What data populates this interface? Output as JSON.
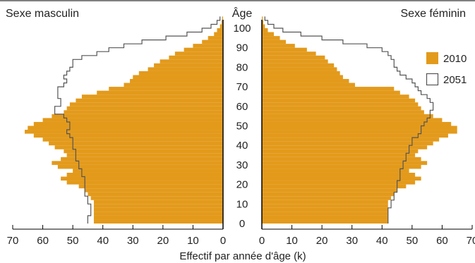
{
  "chart_data": {
    "type": "population-pyramid",
    "left_title": "Sexe masculin",
    "right_title": "Sexe féminin",
    "age_label": "Âge",
    "xlabel": "Effectif par année d'âge (k)",
    "x_ticks_left": [
      70,
      60,
      50,
      40,
      30,
      20,
      10,
      0
    ],
    "x_ticks_right": [
      0,
      10,
      20,
      30,
      40,
      50,
      60,
      70
    ],
    "age_ticks": [
      0,
      10,
      20,
      30,
      40,
      50,
      60,
      70,
      80,
      90,
      100
    ],
    "xlim": [
      0,
      70
    ],
    "age_range": [
      0,
      106
    ],
    "series": [
      {
        "name": "2010",
        "color": "#e39a1b",
        "style": "filled",
        "male": [
          [
            0,
            43
          ],
          [
            2,
            43
          ],
          [
            4,
            43
          ],
          [
            6,
            43
          ],
          [
            8,
            43
          ],
          [
            10,
            43
          ],
          [
            12,
            44
          ],
          [
            14,
            45
          ],
          [
            16,
            46
          ],
          [
            18,
            48
          ],
          [
            20,
            52
          ],
          [
            22,
            54
          ],
          [
            24,
            52
          ],
          [
            26,
            50
          ],
          [
            28,
            55
          ],
          [
            30,
            57
          ],
          [
            32,
            54
          ],
          [
            34,
            52
          ],
          [
            36,
            53
          ],
          [
            38,
            56
          ],
          [
            40,
            58
          ],
          [
            42,
            60
          ],
          [
            44,
            63
          ],
          [
            46,
            66
          ],
          [
            48,
            65
          ],
          [
            50,
            63
          ],
          [
            52,
            60
          ],
          [
            54,
            57
          ],
          [
            56,
            53
          ],
          [
            58,
            52
          ],
          [
            60,
            51
          ],
          [
            62,
            49
          ],
          [
            64,
            47
          ],
          [
            66,
            42
          ],
          [
            68,
            38
          ],
          [
            70,
            33
          ],
          [
            72,
            31
          ],
          [
            74,
            30
          ],
          [
            76,
            28
          ],
          [
            78,
            25
          ],
          [
            80,
            23
          ],
          [
            82,
            21
          ],
          [
            84,
            18
          ],
          [
            86,
            16
          ],
          [
            88,
            13
          ],
          [
            90,
            10
          ],
          [
            92,
            7
          ],
          [
            94,
            5
          ],
          [
            96,
            3
          ],
          [
            98,
            2
          ],
          [
            100,
            1
          ],
          [
            102,
            0.5
          ],
          [
            104,
            0.3
          ],
          [
            106,
            0
          ]
        ],
        "female": [
          [
            0,
            42
          ],
          [
            2,
            42
          ],
          [
            4,
            42
          ],
          [
            6,
            42
          ],
          [
            8,
            42
          ],
          [
            10,
            42
          ],
          [
            12,
            43
          ],
          [
            14,
            44
          ],
          [
            16,
            45
          ],
          [
            18,
            48
          ],
          [
            20,
            51
          ],
          [
            22,
            53
          ],
          [
            24,
            51
          ],
          [
            26,
            49
          ],
          [
            28,
            53
          ],
          [
            30,
            55
          ],
          [
            32,
            53
          ],
          [
            34,
            51
          ],
          [
            36,
            52
          ],
          [
            38,
            55
          ],
          [
            40,
            57
          ],
          [
            42,
            59
          ],
          [
            44,
            62
          ],
          [
            46,
            65
          ],
          [
            48,
            65
          ],
          [
            50,
            63
          ],
          [
            52,
            60
          ],
          [
            54,
            57
          ],
          [
            56,
            54
          ],
          [
            58,
            53
          ],
          [
            60,
            52
          ],
          [
            62,
            51
          ],
          [
            64,
            49
          ],
          [
            66,
            46
          ],
          [
            68,
            44
          ],
          [
            70,
            31
          ],
          [
            72,
            29
          ],
          [
            74,
            27
          ],
          [
            76,
            26
          ],
          [
            78,
            25
          ],
          [
            80,
            24
          ],
          [
            82,
            22
          ],
          [
            84,
            21
          ],
          [
            86,
            18
          ],
          [
            88,
            15
          ],
          [
            90,
            11
          ],
          [
            92,
            8
          ],
          [
            94,
            6
          ],
          [
            96,
            4
          ],
          [
            98,
            2
          ],
          [
            100,
            1
          ],
          [
            102,
            0.5
          ],
          [
            104,
            0.3
          ],
          [
            106,
            0
          ]
        ]
      },
      {
        "name": "2051",
        "color": "#555555",
        "style": "outline",
        "male": [
          [
            0,
            45
          ],
          [
            2,
            45
          ],
          [
            4,
            44
          ],
          [
            6,
            44
          ],
          [
            8,
            44
          ],
          [
            10,
            45
          ],
          [
            12,
            45
          ],
          [
            14,
            46
          ],
          [
            16,
            46
          ],
          [
            18,
            46
          ],
          [
            20,
            46
          ],
          [
            22,
            46
          ],
          [
            24,
            47
          ],
          [
            26,
            47
          ],
          [
            28,
            48
          ],
          [
            30,
            48
          ],
          [
            32,
            49
          ],
          [
            34,
            49
          ],
          [
            36,
            49
          ],
          [
            38,
            50
          ],
          [
            40,
            50
          ],
          [
            42,
            50
          ],
          [
            44,
            51
          ],
          [
            46,
            52
          ],
          [
            48,
            51
          ],
          [
            50,
            51
          ],
          [
            52,
            52
          ],
          [
            54,
            53
          ],
          [
            56,
            56
          ],
          [
            58,
            56
          ],
          [
            60,
            54
          ],
          [
            62,
            54
          ],
          [
            64,
            55
          ],
          [
            66,
            55
          ],
          [
            68,
            55
          ],
          [
            70,
            53
          ],
          [
            72,
            52
          ],
          [
            74,
            53
          ],
          [
            76,
            52
          ],
          [
            78,
            51
          ],
          [
            80,
            50
          ],
          [
            82,
            50
          ],
          [
            84,
            47
          ],
          [
            86,
            42
          ],
          [
            88,
            38
          ],
          [
            90,
            33
          ],
          [
            92,
            27
          ],
          [
            94,
            19
          ],
          [
            96,
            12
          ],
          [
            98,
            7
          ],
          [
            100,
            4
          ],
          [
            102,
            2
          ],
          [
            104,
            1
          ],
          [
            106,
            0
          ]
        ],
        "female": [
          [
            0,
            42
          ],
          [
            2,
            42
          ],
          [
            4,
            42
          ],
          [
            6,
            42
          ],
          [
            8,
            43
          ],
          [
            10,
            43
          ],
          [
            12,
            44
          ],
          [
            14,
            44
          ],
          [
            16,
            45
          ],
          [
            18,
            45
          ],
          [
            20,
            45
          ],
          [
            22,
            46
          ],
          [
            24,
            46
          ],
          [
            26,
            46
          ],
          [
            28,
            47
          ],
          [
            30,
            47
          ],
          [
            32,
            48
          ],
          [
            34,
            48
          ],
          [
            36,
            49
          ],
          [
            38,
            49
          ],
          [
            40,
            50
          ],
          [
            42,
            50
          ],
          [
            44,
            52
          ],
          [
            46,
            53
          ],
          [
            48,
            53
          ],
          [
            50,
            54
          ],
          [
            52,
            55
          ],
          [
            54,
            56
          ],
          [
            56,
            56
          ],
          [
            58,
            57
          ],
          [
            60,
            57
          ],
          [
            62,
            56
          ],
          [
            64,
            55
          ],
          [
            66,
            53
          ],
          [
            68,
            52
          ],
          [
            70,
            51
          ],
          [
            72,
            50
          ],
          [
            74,
            48
          ],
          [
            76,
            46
          ],
          [
            78,
            45
          ],
          [
            80,
            44
          ],
          [
            82,
            44
          ],
          [
            84,
            43
          ],
          [
            86,
            42
          ],
          [
            88,
            40
          ],
          [
            90,
            35
          ],
          [
            92,
            27
          ],
          [
            94,
            20
          ],
          [
            96,
            13
          ],
          [
            98,
            7
          ],
          [
            100,
            4
          ],
          [
            102,
            2
          ],
          [
            104,
            1
          ],
          [
            106,
            0
          ]
        ]
      }
    ],
    "legend": {
      "placement": "right"
    }
  }
}
